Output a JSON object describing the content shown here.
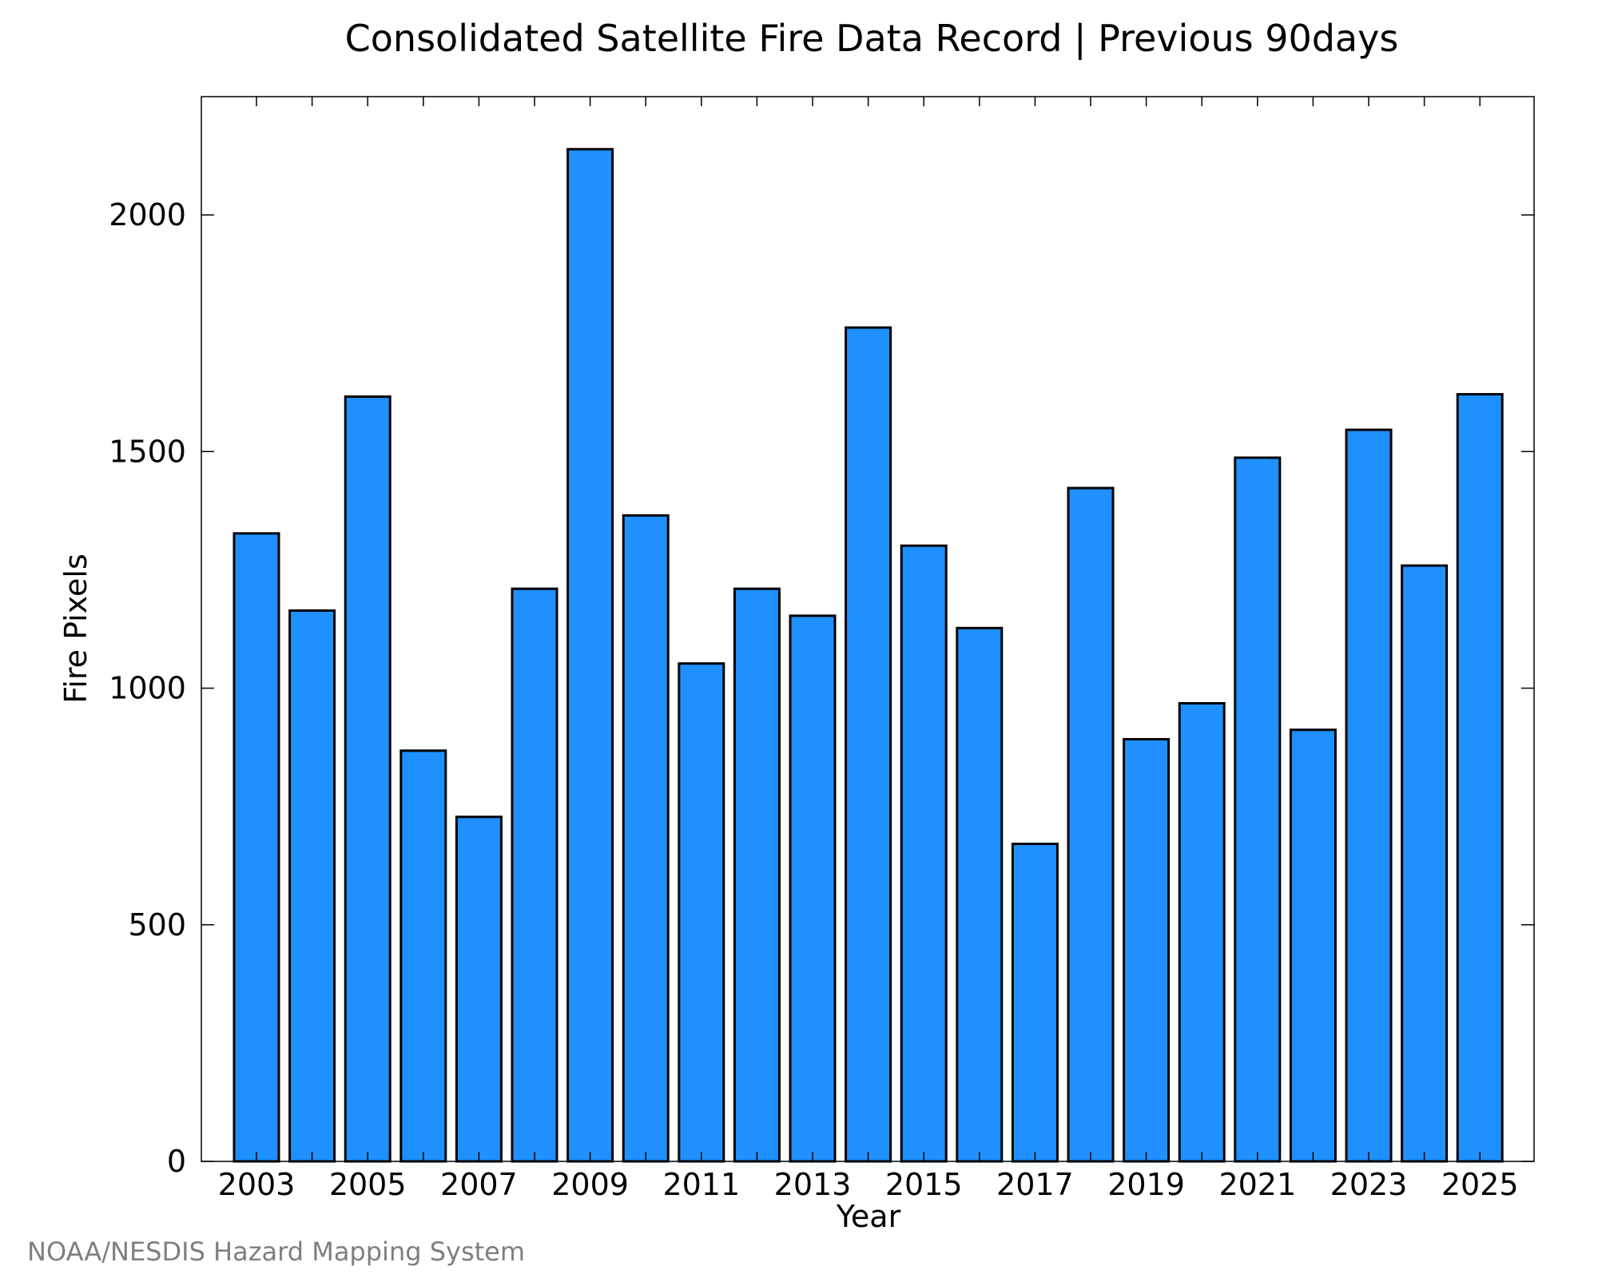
{
  "chart_data": {
    "type": "bar",
    "title": "Consolidated Satellite Fire Data Record | Previous 90days",
    "xlabel": "Year",
    "ylabel": "Fire Pixels",
    "categories": [
      "2003",
      "2004",
      "2005",
      "2006",
      "2007",
      "2008",
      "2009",
      "2010",
      "2011",
      "2012",
      "2013",
      "2014",
      "2015",
      "2016",
      "2017",
      "2018",
      "2019",
      "2020",
      "2021",
      "2022",
      "2023",
      "2024",
      "2025"
    ],
    "values": [
      1327,
      1164,
      1616,
      868,
      728,
      1210,
      2139,
      1365,
      1052,
      1210,
      1153,
      1762,
      1301,
      1127,
      671,
      1423,
      892,
      968,
      1487,
      912,
      1546,
      1259,
      1621
    ],
    "x_tick_labels": [
      "2003",
      "2005",
      "2007",
      "2009",
      "2011",
      "2013",
      "2015",
      "2017",
      "2019",
      "2021",
      "2023",
      "2025"
    ],
    "y_tick_labels": [
      "0",
      "500",
      "1000",
      "1500",
      "2000"
    ],
    "y_ticks": [
      0,
      500,
      1000,
      1500,
      2000
    ],
    "ylim": [
      0,
      2250
    ],
    "grid": false,
    "legend": "none",
    "bar_color": "#1e90ff",
    "edge_color": "#000000"
  },
  "credit": "NOAA/NESDIS Hazard Mapping System"
}
